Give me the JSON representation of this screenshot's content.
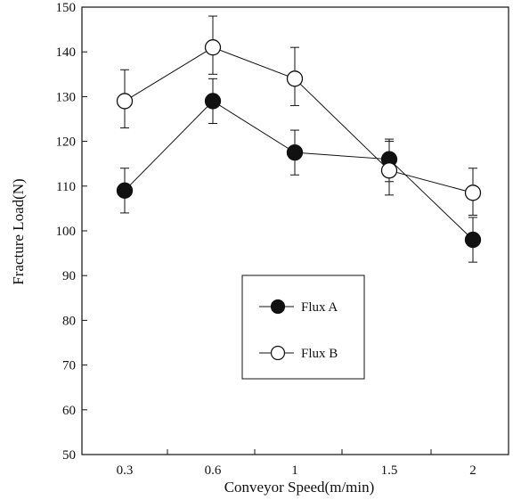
{
  "chart_data": {
    "type": "line",
    "title": "",
    "xlabel": "Conveyor Speed(m/min)",
    "ylabel": "Fracture Load(N)",
    "categories": [
      "0.3",
      "0.6",
      "1",
      "1.5",
      "2"
    ],
    "ylim": [
      50,
      150
    ],
    "yticks": [
      "50",
      "60",
      "70",
      "80",
      "90",
      "100",
      "110",
      "120",
      "130",
      "140",
      "150"
    ],
    "grid": false,
    "legend_position": "center",
    "series": [
      {
        "name": "Flux A",
        "marker": "filled-circle",
        "color": "#111111",
        "values": [
          109,
          129,
          117.5,
          116,
          98
        ],
        "err_high": [
          114,
          134,
          122.5,
          120.5,
          103
        ],
        "err_low": [
          104,
          124,
          112.5,
          111,
          93
        ]
      },
      {
        "name": "Flux B",
        "marker": "open-circle",
        "color": "#111111",
        "values": [
          129,
          141,
          134,
          113.5,
          108.5
        ],
        "err_high": [
          136,
          148,
          141,
          120,
          114
        ],
        "err_low": [
          123,
          135,
          128,
          108,
          103.5
        ]
      }
    ]
  }
}
